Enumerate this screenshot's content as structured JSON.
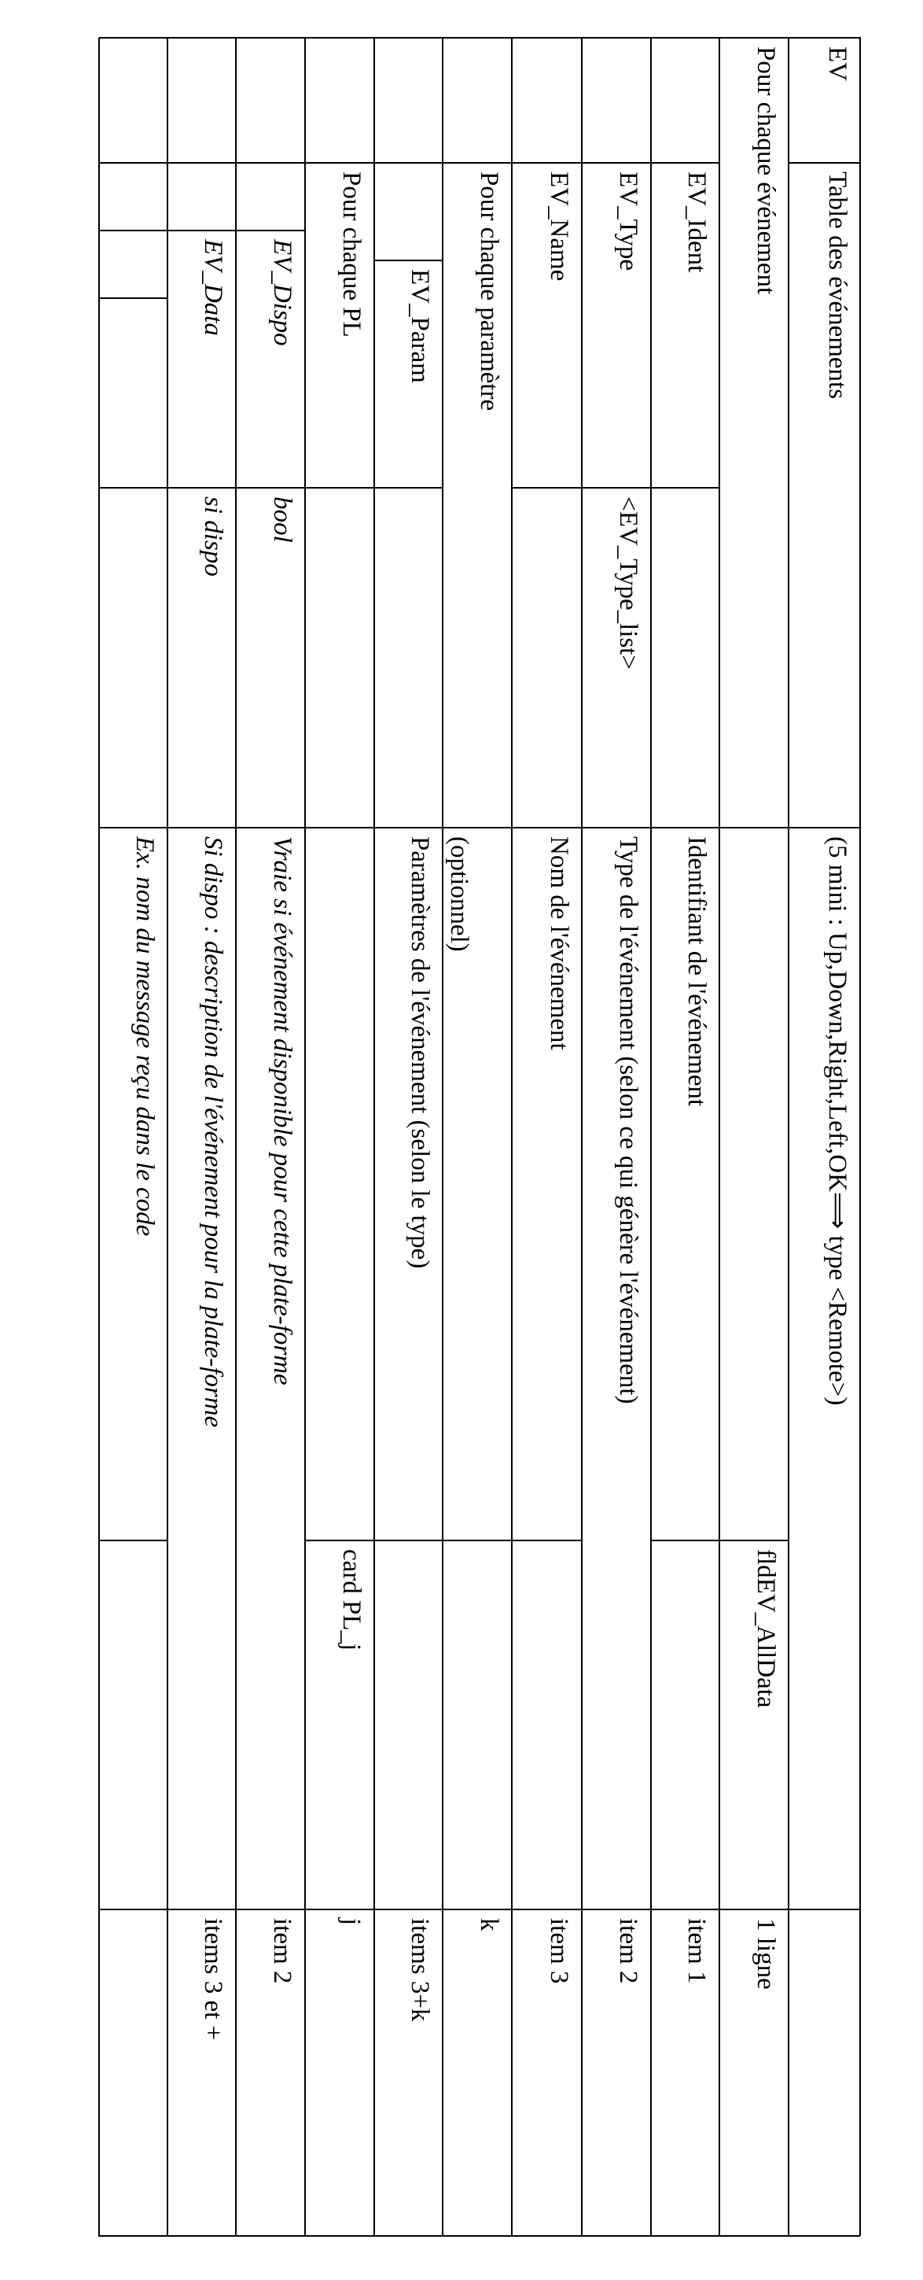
{
  "table": {
    "rows": [
      [
        "EV",
        "Table des événements",
        "(5 mini : Up,Down,Right,Left,OK⟹ type <Remote>)",
        ""
      ],
      [
        "Pour chaque événement",
        "",
        "fldEV_AllData",
        "1 ligne"
      ],
      [
        "",
        "EV_Ident",
        "",
        "Identifiant de l'événement",
        "",
        "item 1"
      ],
      [
        "",
        "EV_Type",
        "<EV_Type_list>",
        "Type de l'événement (selon ce qui génère l'événement)",
        "item 2"
      ],
      [
        "",
        "EV_Name",
        "",
        "Nom de l'événement",
        "",
        "item 3"
      ],
      [
        "",
        "Pour chaque paramètre",
        "(optionnel)",
        "",
        "k"
      ],
      [
        "",
        "",
        "EV_Param",
        "",
        "Paramètres de l'événement (selon le type)",
        "",
        "items 3+k"
      ],
      [
        "",
        "Pour chaque PL",
        "",
        "",
        "card PL_j",
        "j"
      ],
      [
        "",
        "",
        "EV_Dispo",
        "bool",
        "Vraie si événement disponible pour cette plate-forme",
        "item 2"
      ],
      [
        "",
        "",
        "EV_Data",
        "si dispo",
        "Si dispo : description de l'événement pour la plate-forme",
        "items 3 et +"
      ],
      [
        "",
        "",
        "",
        "",
        "",
        "Ex. nom du message reçu dans le code",
        "",
        ""
      ]
    ]
  }
}
